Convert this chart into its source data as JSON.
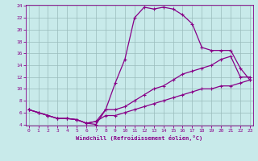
{
  "xlabel": "Windchill (Refroidissement éolien,°C)",
  "bg_color": "#c8eaea",
  "line_color": "#880088",
  "grid_color": "#99bbbb",
  "ylim": [
    4,
    24
  ],
  "xlim": [
    0,
    23
  ],
  "yticks": [
    4,
    6,
    8,
    10,
    12,
    14,
    16,
    18,
    20,
    22,
    24
  ],
  "xticks": [
    0,
    1,
    2,
    3,
    4,
    5,
    6,
    7,
    8,
    9,
    10,
    11,
    12,
    13,
    14,
    15,
    16,
    17,
    18,
    19,
    20,
    21,
    22,
    23
  ],
  "line1_x": [
    0,
    1,
    2,
    3,
    4,
    5,
    6,
    7,
    8,
    9,
    10,
    11,
    12,
    13,
    14,
    15,
    16,
    17,
    18,
    19,
    20,
    21,
    22,
    23
  ],
  "line1_y": [
    6.5,
    6.0,
    5.5,
    5.0,
    5.0,
    4.8,
    4.2,
    4.0,
    6.5,
    11.0,
    15.0,
    22.0,
    23.8,
    23.5,
    23.8,
    23.5,
    22.5,
    21.0,
    17.0,
    16.5,
    16.5,
    16.5,
    13.5,
    11.5
  ],
  "line2_x": [
    0,
    1,
    2,
    3,
    4,
    5,
    6,
    7,
    8,
    9,
    10,
    11,
    12,
    13,
    14,
    15,
    16,
    17,
    18,
    19,
    20,
    21,
    22,
    23
  ],
  "line2_y": [
    6.5,
    6.0,
    5.5,
    5.0,
    5.0,
    4.8,
    4.2,
    4.5,
    6.5,
    6.5,
    7.0,
    8.0,
    9.0,
    10.0,
    10.5,
    11.5,
    12.5,
    13.0,
    13.5,
    14.0,
    15.0,
    15.5,
    12.0,
    12.0
  ],
  "line3_x": [
    0,
    1,
    2,
    3,
    4,
    5,
    6,
    7,
    8,
    9,
    10,
    11,
    12,
    13,
    14,
    15,
    16,
    17,
    18,
    19,
    20,
    21,
    22,
    23
  ],
  "line3_y": [
    6.5,
    6.0,
    5.5,
    5.0,
    5.0,
    4.8,
    4.2,
    4.5,
    5.5,
    5.5,
    6.0,
    6.5,
    7.0,
    7.5,
    8.0,
    8.5,
    9.0,
    9.5,
    10.0,
    10.0,
    10.5,
    10.5,
    11.0,
    11.5
  ]
}
